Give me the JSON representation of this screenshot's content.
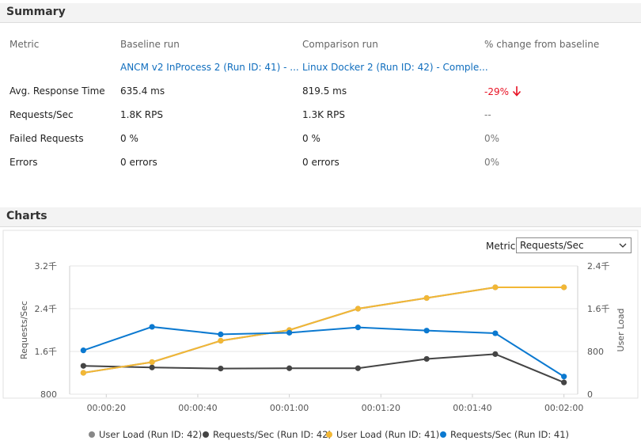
{
  "summary": {
    "title": "Summary",
    "headers": [
      "Metric",
      "Baseline run",
      "Comparison run",
      "% change from baseline"
    ],
    "baseline_link": "ANCM v2 InProcess 2 (Run ID: 41) - ...",
    "comparison_link": "Linux Docker 2 (Run ID: 42) - Comple...",
    "rows": [
      {
        "metric": "Avg. Response Time",
        "baseline": "635.4 ms",
        "comparison": "819.5 ms",
        "change": "-29%"
      },
      {
        "metric": "Requests/Sec",
        "baseline": "1.8K RPS",
        "comparison": "1.3K RPS",
        "change": "--"
      },
      {
        "metric": "Failed Requests",
        "baseline": "0 %",
        "comparison": "0 %",
        "change": "0%"
      },
      {
        "metric": "Errors",
        "baseline": "0 errors",
        "comparison": "0 errors",
        "change": "0%"
      }
    ]
  },
  "charts": {
    "title": "Charts",
    "metric_label": "Metric:",
    "metric_selected": "Requests/Sec"
  },
  "colors": {
    "negative": "#e81123",
    "link": "#106ebe",
    "series_user_load_42": "#888888",
    "series_rps_42": "#444444",
    "series_user_load_41": "#f2b735",
    "series_rps_41": "#0b79d0"
  },
  "chart_data": {
    "type": "line",
    "x": [
      "00:00:15",
      "00:00:30",
      "00:00:45",
      "00:01:00",
      "00:01:15",
      "00:01:30",
      "00:01:45",
      "00:02:00"
    ],
    "x_tick_labels": [
      "00:00:20",
      "00:00:40",
      "00:01:00",
      "00:01:20",
      "00:01:40",
      "00:02:00"
    ],
    "x_tick_values": [
      20,
      40,
      60,
      80,
      100,
      120
    ],
    "x_seconds": [
      15,
      30,
      45,
      60,
      75,
      90,
      105,
      120
    ],
    "xlim": [
      12,
      123
    ],
    "left_axis": {
      "label": "Requests/Sec",
      "range": [
        800,
        3200
      ],
      "ticks": [
        800,
        1600,
        2400,
        3200
      ],
      "tick_labels": [
        "800",
        "1.6千",
        "2.4千",
        "3.2千"
      ]
    },
    "right_axis": {
      "label": "User Load",
      "range": [
        0,
        2400
      ],
      "ticks": [
        0,
        800,
        1600,
        2400
      ],
      "tick_labels": [
        "0",
        "800",
        "1.6千",
        "2.4千"
      ]
    },
    "series": [
      {
        "name": "User Load (Run ID: 42)",
        "axis": "right",
        "values": [
          400,
          600,
          1000,
          1200,
          1600,
          1800,
          2000,
          2000
        ]
      },
      {
        "name": "Requests/Sec (Run ID: 42)",
        "axis": "left",
        "values": [
          1330,
          1300,
          1280,
          1285,
          1285,
          1460,
          1550,
          1020
        ]
      },
      {
        "name": "User Load (Run ID: 41)",
        "axis": "right",
        "values": [
          400,
          600,
          1000,
          1200,
          1600,
          1800,
          2000,
          2000
        ]
      },
      {
        "name": "Requests/Sec (Run ID: 41)",
        "axis": "left",
        "values": [
          1620,
          2060,
          1920,
          1950,
          2050,
          1990,
          1940,
          1130
        ]
      }
    ]
  }
}
